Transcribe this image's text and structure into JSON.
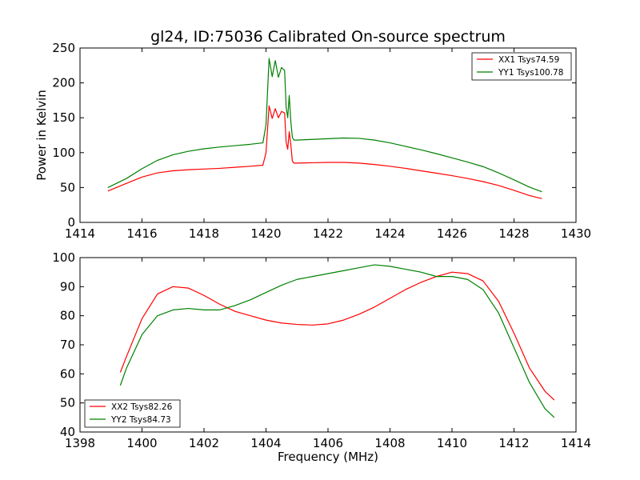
{
  "title": "gl24, ID:75036 Calibrated On-source spectrum",
  "chart_data": [
    {
      "type": "line",
      "xlabel": "",
      "ylabel": "Power in Kelvin",
      "xlim": [
        1414,
        1430
      ],
      "ylim": [
        0,
        250
      ],
      "xticks": [
        "1414",
        "1416",
        "1418",
        "1420",
        "1422",
        "1424",
        "1426",
        "1428",
        "1430"
      ],
      "yticks": [
        "0",
        "50",
        "100",
        "150",
        "200",
        "250"
      ],
      "legend_position": "top-right",
      "grid": false,
      "series": [
        {
          "name": "XX1 Tsys74.59",
          "color": "#ff0000",
          "x": [
            1414.9,
            1415.5,
            1416,
            1416.5,
            1417,
            1417.5,
            1418,
            1418.5,
            1419,
            1419.5,
            1419.9,
            1420.0,
            1420.1,
            1420.2,
            1420.3,
            1420.4,
            1420.5,
            1420.6,
            1420.65,
            1420.7,
            1420.75,
            1420.8,
            1420.85,
            1420.9,
            1421.0,
            1421.5,
            1422,
            1422.5,
            1423,
            1423.5,
            1424,
            1424.5,
            1425,
            1425.5,
            1426,
            1426.5,
            1427,
            1427.5,
            1428,
            1428.5,
            1428.9
          ],
          "y": [
            45,
            56,
            65,
            71,
            74,
            75.5,
            76.5,
            77.5,
            79,
            80.5,
            82,
            100,
            167,
            149,
            163,
            150,
            159,
            157,
            115,
            105,
            130,
            112,
            88,
            85,
            85,
            85.5,
            86,
            86,
            85,
            83,
            80.5,
            77.5,
            74,
            70.5,
            67,
            63,
            58.5,
            53,
            46,
            38.5,
            34
          ]
        },
        {
          "name": "YY1 Tsys100.78",
          "color": "#008000",
          "x": [
            1414.9,
            1415.5,
            1416,
            1416.5,
            1417,
            1417.5,
            1418,
            1418.5,
            1419,
            1419.5,
            1419.9,
            1420.0,
            1420.1,
            1420.2,
            1420.3,
            1420.4,
            1420.5,
            1420.6,
            1420.65,
            1420.7,
            1420.75,
            1420.8,
            1420.85,
            1420.9,
            1421.0,
            1421.5,
            1422,
            1422.5,
            1423,
            1423.5,
            1424,
            1424.5,
            1425,
            1425.5,
            1426,
            1426.5,
            1427,
            1427.5,
            1428,
            1428.5,
            1428.9
          ],
          "y": [
            50,
            63,
            77,
            89,
            97,
            102,
            105.5,
            108,
            110,
            112,
            114,
            140,
            235,
            209,
            232,
            208,
            222,
            218,
            165,
            150,
            182,
            145,
            122,
            118,
            118,
            119,
            120,
            121,
            120.5,
            118,
            114,
            109,
            104,
            98.5,
            92.5,
            86.5,
            80,
            71,
            61,
            50.5,
            44
          ]
        }
      ]
    },
    {
      "type": "line",
      "xlabel": "Frequency (MHz)",
      "ylabel": "",
      "xlim": [
        1398,
        1414
      ],
      "ylim": [
        40,
        100
      ],
      "xticks": [
        "1398",
        "1400",
        "1402",
        "1404",
        "1406",
        "1408",
        "1410",
        "1412",
        "1414"
      ],
      "yticks": [
        "40",
        "50",
        "60",
        "70",
        "80",
        "90",
        "100"
      ],
      "legend_position": "bottom-left",
      "grid": false,
      "series": [
        {
          "name": "XX2 Tsys82.26",
          "color": "#ff0000",
          "x": [
            1399.3,
            1399.5,
            1400,
            1400.5,
            1401,
            1401.5,
            1402,
            1402.5,
            1403,
            1403.5,
            1404,
            1404.5,
            1405,
            1405.5,
            1406,
            1406.5,
            1407,
            1407.5,
            1408,
            1408.5,
            1409,
            1409.5,
            1410,
            1410.5,
            1411,
            1411.5,
            1412,
            1412.5,
            1413,
            1413.3
          ],
          "y": [
            60.5,
            66,
            79,
            87.5,
            90,
            89.5,
            87,
            84,
            81.5,
            80,
            78.5,
            77.5,
            77,
            76.8,
            77.2,
            78.5,
            80.5,
            83,
            86,
            89,
            91.5,
            93.5,
            95,
            94.5,
            92,
            85,
            74,
            62,
            54,
            51
          ]
        },
        {
          "name": "YY2 Tsys84.73",
          "color": "#008000",
          "x": [
            1399.3,
            1399.5,
            1400,
            1400.5,
            1401,
            1401.5,
            1402,
            1402.5,
            1403,
            1403.5,
            1404,
            1404.5,
            1405,
            1405.5,
            1406,
            1406.5,
            1407,
            1407.5,
            1408,
            1408.5,
            1409,
            1409.5,
            1410,
            1410.5,
            1411,
            1411.5,
            1412,
            1412.5,
            1413,
            1413.3
          ],
          "y": [
            56,
            62,
            73.5,
            80,
            82,
            82.5,
            82,
            82,
            83.5,
            85.5,
            88,
            90.5,
            92.5,
            93.5,
            94.5,
            95.5,
            96.5,
            97.5,
            97,
            96,
            95,
            93.5,
            93.5,
            92.5,
            89,
            81,
            69,
            57,
            48,
            45
          ]
        }
      ]
    }
  ]
}
